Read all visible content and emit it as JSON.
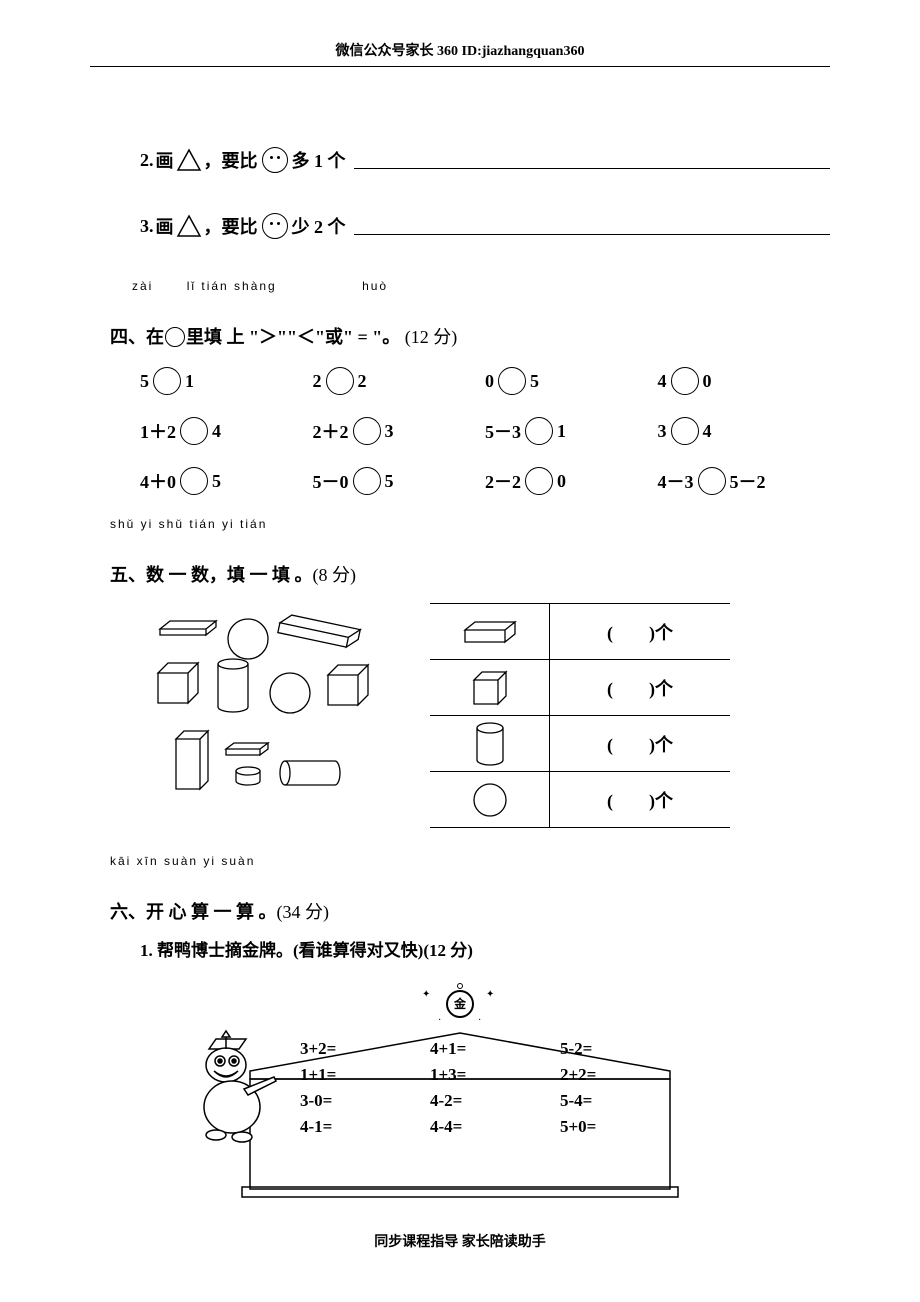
{
  "header": "微信公众号家长 360 ID:jiazhangquan360",
  "draw_items": [
    {
      "num": "2.",
      "prefix": "画",
      "mid": "，要比",
      "suffix": "多 1 个"
    },
    {
      "num": "3.",
      "prefix": "画",
      "mid": "，要比",
      "suffix": "少 2 个"
    }
  ],
  "section4": {
    "pinyin_parts": [
      "zài",
      "lǐ tián shàng",
      "huò"
    ],
    "title_parts": [
      "四、在",
      "里填 上 \"＞\"\"＜\"或\" = \"。",
      "(12 分)"
    ]
  },
  "compare_rows": [
    [
      [
        "5",
        "1"
      ],
      [
        "2",
        "2"
      ],
      [
        "0",
        "5"
      ],
      [
        "4",
        "0"
      ]
    ],
    [
      [
        "1＋2",
        "4"
      ],
      [
        "2＋2",
        "3"
      ],
      [
        "5－3",
        "1"
      ],
      [
        "3",
        "4"
      ]
    ],
    [
      [
        "4＋0",
        "5"
      ],
      [
        "5－0",
        "5"
      ],
      [
        "2－2",
        "0"
      ],
      [
        "4－3",
        "5－2"
      ]
    ]
  ],
  "section5": {
    "pinyin": "shǔ yi shǔ   tián yi tián",
    "title": "五、数 一 数，填 一 填 。",
    "points": "(8 分)",
    "count_label": "(　　)个",
    "shape_types": [
      "cuboid",
      "cube",
      "cylinder",
      "sphere"
    ]
  },
  "section6": {
    "pinyin": "kāi xīn suàn  yi  suàn",
    "title": "六、开 心 算 一 算 。",
    "points": "(34 分)",
    "sub1": "1. 帮鸭博士摘金牌。(看谁算得对又快)(12 分)",
    "medal_char": "金",
    "equations": [
      [
        "3+2=",
        "4+1=",
        "5-2="
      ],
      [
        "1+1=",
        "1+3=",
        "2+2="
      ],
      [
        "3-0=",
        "4-2=",
        "5-4="
      ],
      [
        "4-1=",
        "4-4=",
        "5+0="
      ]
    ]
  },
  "footer": "同步课程指导  家长陪读助手"
}
